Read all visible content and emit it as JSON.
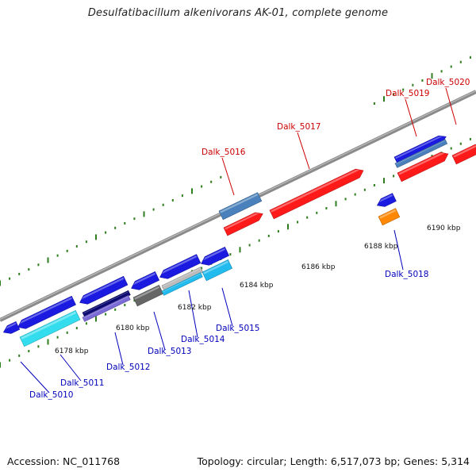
{
  "title": "Desulfatibacillum alkenivorans AK-01, complete genome",
  "accession": "Accession: NC_011768",
  "summary": "Topology: circular; Length: 6,517,073 bp; Genes: 5,314",
  "colors": {
    "forward_label": "#cc0000",
    "reverse_label": "#0000bb",
    "backbone": "#8a8a8a",
    "tick": "#2e7d1e",
    "forward_gene": "#ee1111",
    "forward_gene_blue": "#1a1ae0"
  },
  "ruler_labels": [
    "6178 kbp",
    "6180 kbp",
    "6182 kbp",
    "6184 kbp",
    "6186 kbp",
    "6188 kbp",
    "6190 kbp"
  ],
  "genes": [
    {
      "id": "Dalk_5010",
      "strand": "reverse"
    },
    {
      "id": "Dalk_5011",
      "strand": "reverse"
    },
    {
      "id": "Dalk_5012",
      "strand": "reverse"
    },
    {
      "id": "Dalk_5013",
      "strand": "reverse"
    },
    {
      "id": "Dalk_5014",
      "strand": "reverse"
    },
    {
      "id": "Dalk_5015",
      "strand": "reverse"
    },
    {
      "id": "Dalk_5016",
      "strand": "forward"
    },
    {
      "id": "Dalk_5017",
      "strand": "forward"
    },
    {
      "id": "Dalk_5018",
      "strand": "reverse"
    },
    {
      "id": "Dalk_5019",
      "strand": "forward"
    },
    {
      "id": "Dalk_5020",
      "strand": "forward"
    }
  ]
}
